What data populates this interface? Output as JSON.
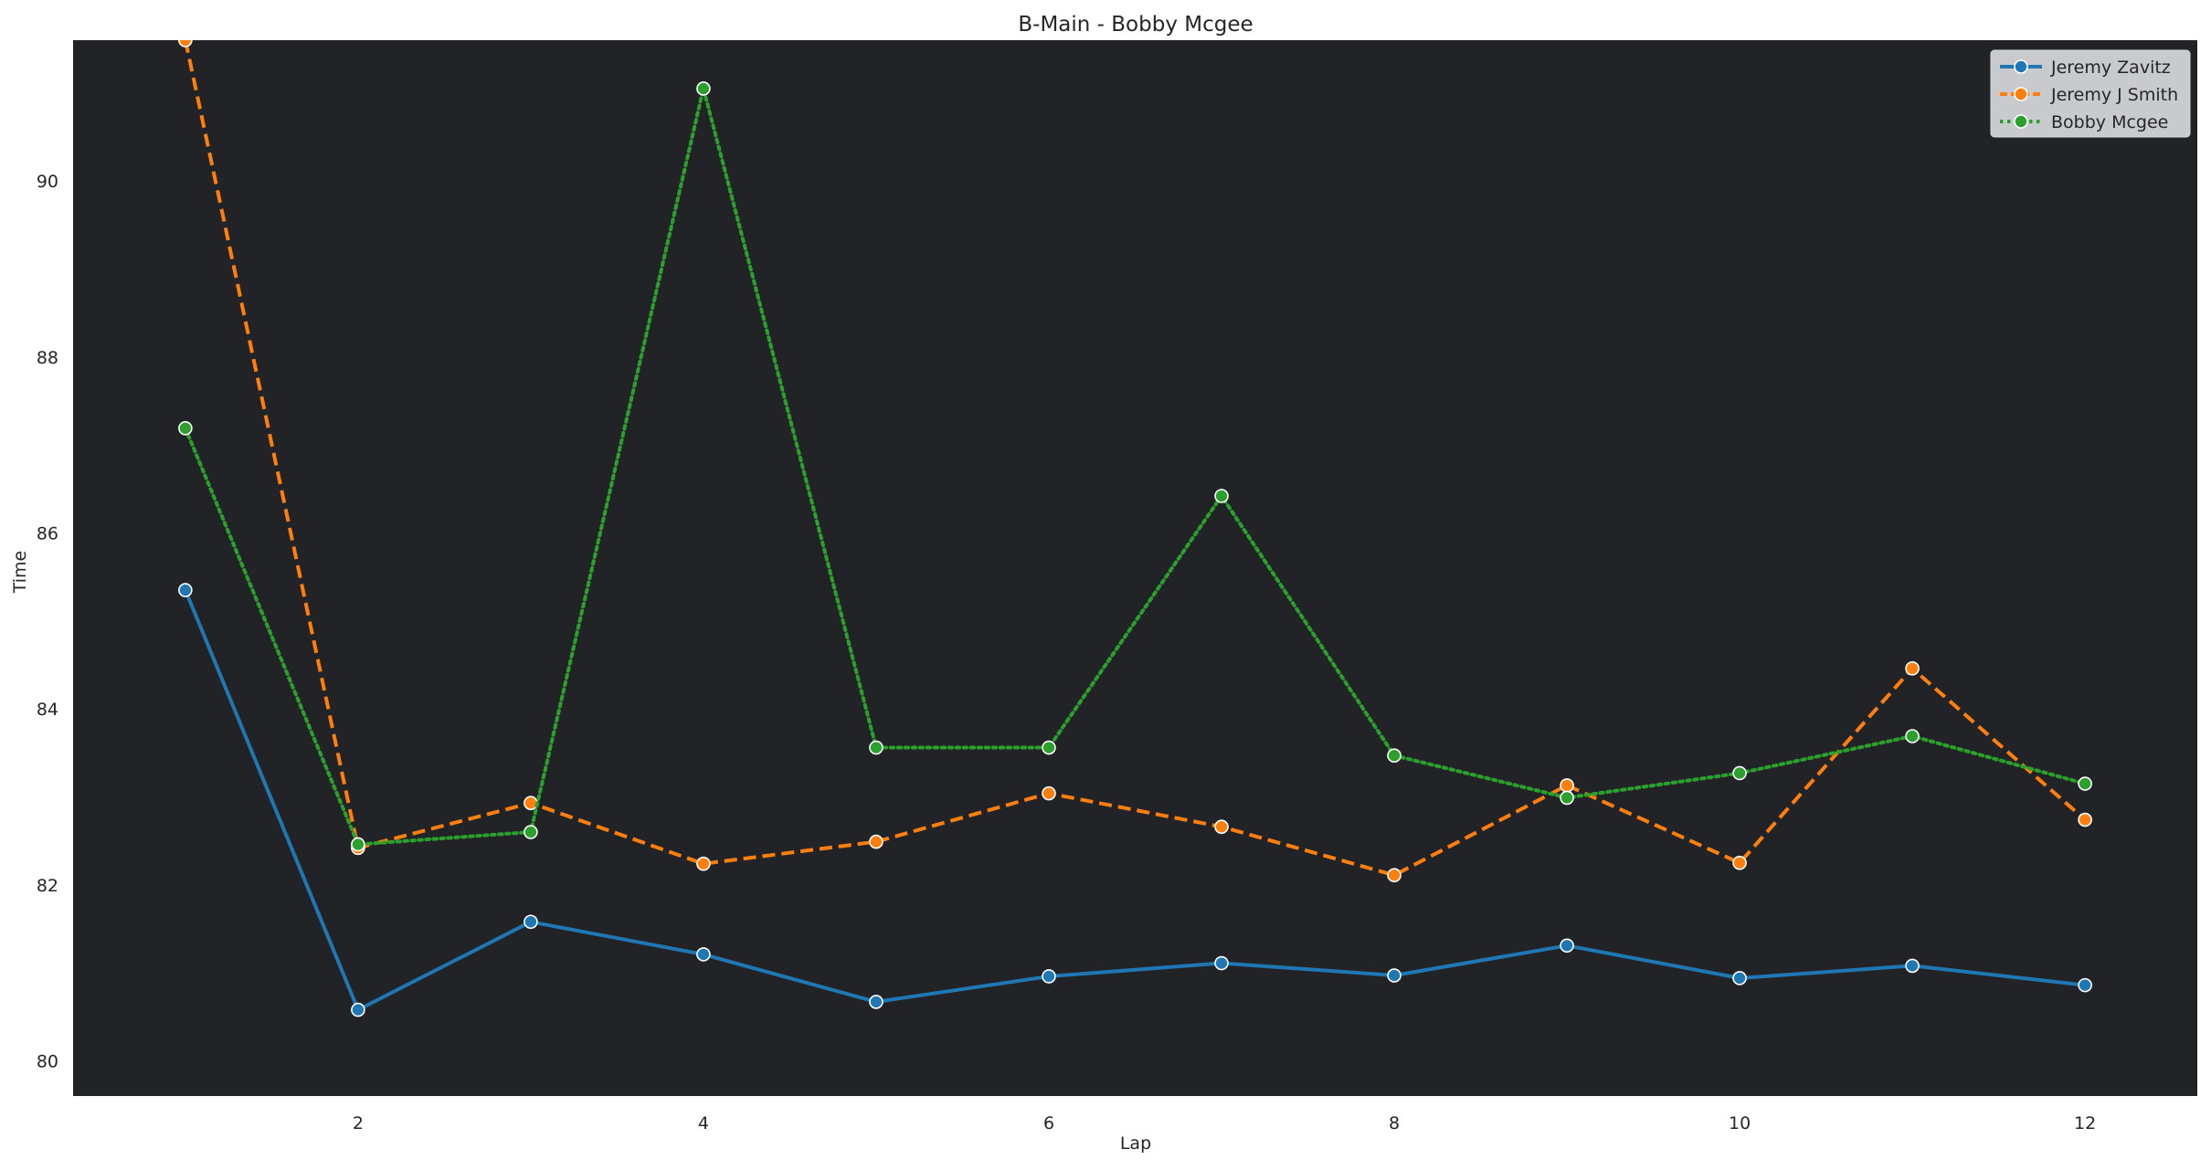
{
  "chart_data": {
    "type": "line",
    "title": "B-Main - Bobby Mcgee",
    "xlabel": "Lap",
    "ylabel": "Time",
    "x": [
      1,
      2,
      3,
      4,
      5,
      6,
      7,
      8,
      9,
      10,
      11,
      12
    ],
    "xlim": [
      0.35,
      12.65
    ],
    "ylim": [
      79.6,
      91.6
    ],
    "xticks": [
      2,
      4,
      6,
      8,
      10,
      12
    ],
    "yticks": [
      80,
      82,
      84,
      86,
      88,
      90
    ],
    "grid": false,
    "legend_position": "top-right",
    "plot_background": "#212327",
    "series": [
      {
        "name": "Jeremy Zavitz",
        "color": "#1f77b4",
        "line_style": "solid",
        "values": [
          85.35,
          80.58,
          81.58,
          81.21,
          80.67,
          80.96,
          81.11,
          80.97,
          81.31,
          80.94,
          81.08,
          80.86
        ]
      },
      {
        "name": "Jeremy J Smith",
        "color": "#ff7f0e",
        "line_style": "dashed",
        "values": [
          91.6,
          82.42,
          82.93,
          82.24,
          82.49,
          83.04,
          82.66,
          82.11,
          83.13,
          82.25,
          84.46,
          82.74
        ]
      },
      {
        "name": "Bobby Mcgee",
        "color": "#2ca02c",
        "line_style": "dotted",
        "values": [
          87.19,
          82.46,
          82.6,
          91.05,
          83.56,
          83.56,
          86.42,
          83.47,
          82.99,
          83.27,
          83.69,
          83.15
        ]
      }
    ]
  }
}
